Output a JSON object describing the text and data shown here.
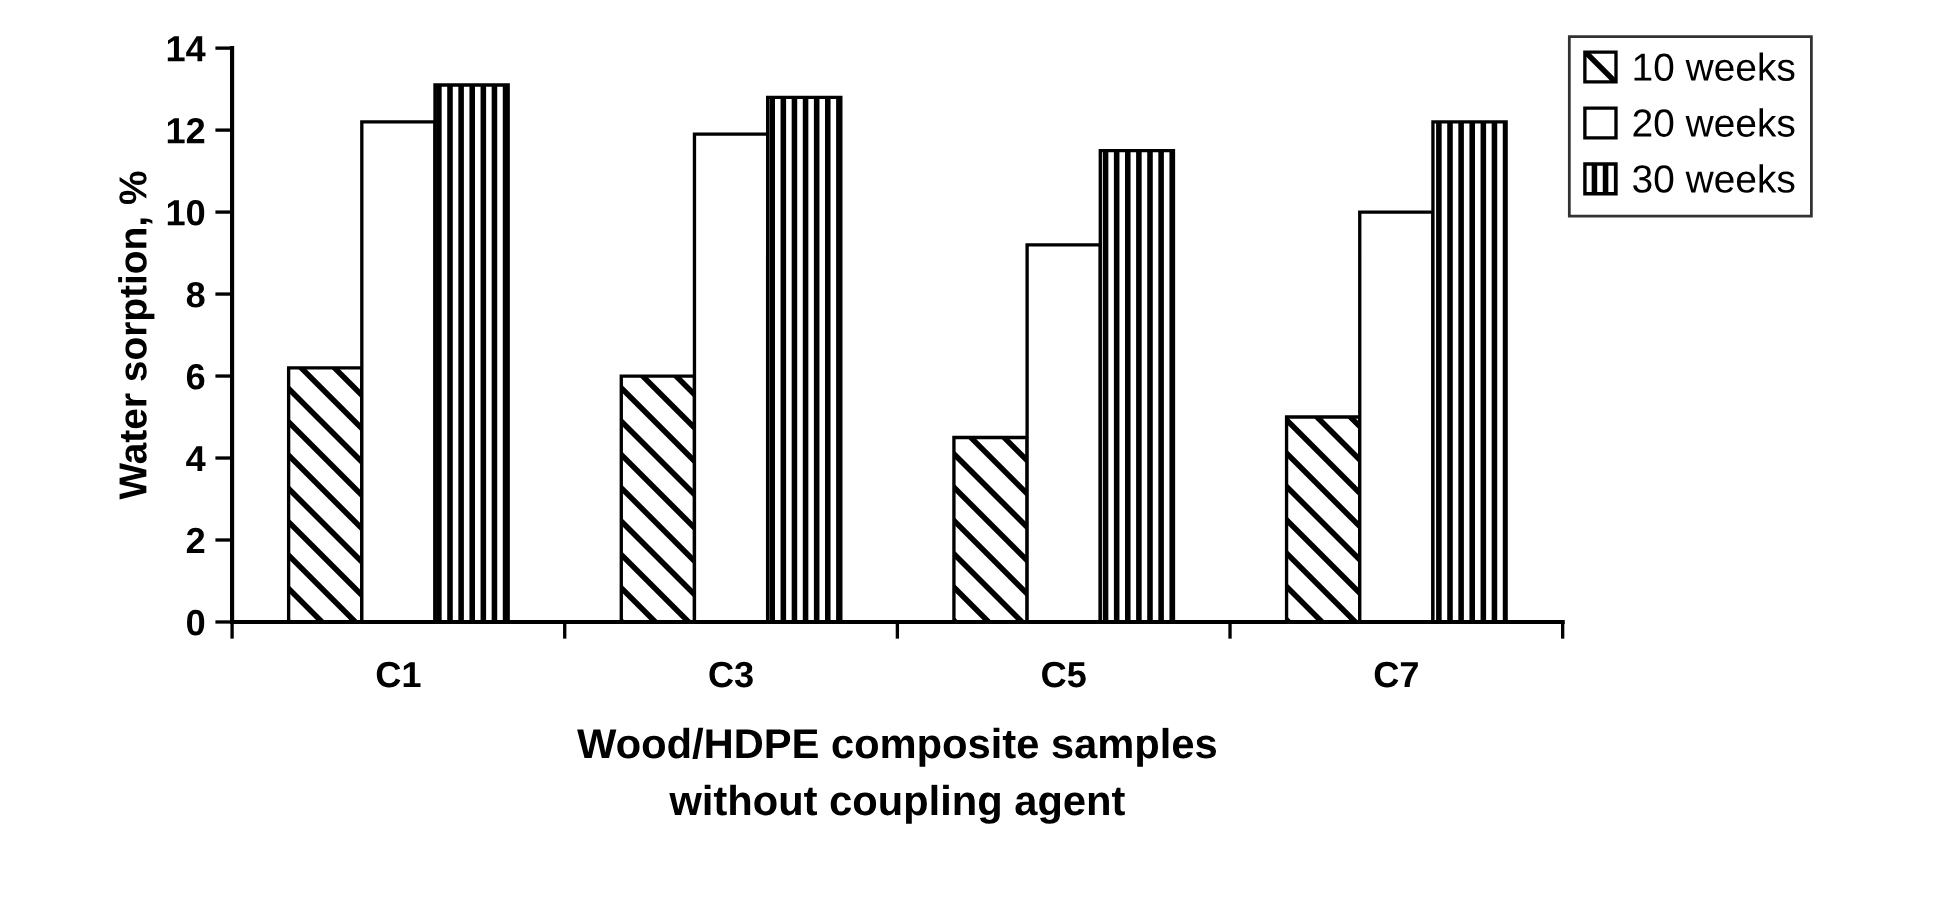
{
  "chart_data": {
    "type": "bar",
    "ylabel": "Water sorption, %",
    "xlabel": "Wood/HDPE composite samples\nwithout coupling agent",
    "categories": [
      "C1",
      "C3",
      "C5",
      "C7"
    ],
    "series": [
      {
        "name": "10 weeks",
        "color": "#000000",
        "values": [
          6.2,
          6.0,
          4.5,
          5.0
        ]
      },
      {
        "name": "20 weeks",
        "color": "#ffffff",
        "values": [
          12.2,
          11.9,
          9.2,
          10.0
        ]
      },
      {
        "name": "30 weeks",
        "color": "#000000",
        "values": [
          13.1,
          12.8,
          11.5,
          12.2
        ]
      }
    ],
    "ylim": [
      0,
      14
    ],
    "yticks": [
      0,
      2,
      4,
      6,
      8,
      10,
      12,
      14
    ],
    "grid": false,
    "legend": "right"
  }
}
